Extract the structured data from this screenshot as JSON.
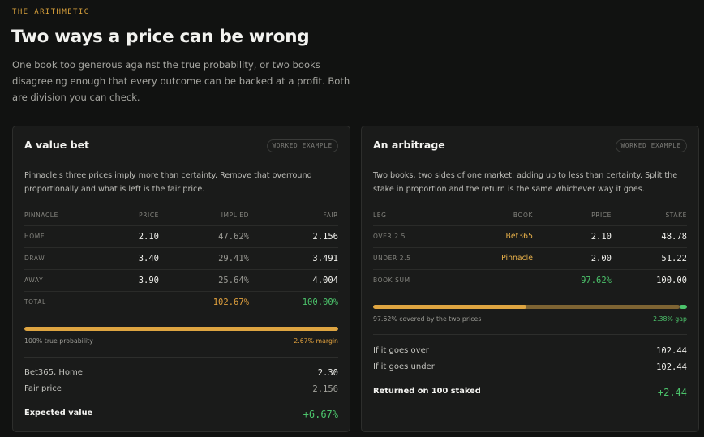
{
  "header": {
    "eyebrow": "THE ARITHMETIC",
    "title": "Two ways a price can be wrong",
    "lede": "One book too generous against the true probability, or two books disagreeing enough that every outcome can be backed at a profit. Both are division you can check."
  },
  "value_bet": {
    "title": "A value bet",
    "badge": "WORKED EXAMPLE",
    "description": "Pinnacle's three prices imply more than certainty. Remove that overround proportionally and what is left is the fair price.",
    "columns": [
      "PINNACLE",
      "PRICE",
      "IMPLIED",
      "FAIR"
    ],
    "rows": [
      {
        "label": "HOME",
        "price": "2.10",
        "implied": "47.62%",
        "fair": "2.156"
      },
      {
        "label": "DRAW",
        "price": "3.40",
        "implied": "29.41%",
        "fair": "3.491"
      },
      {
        "label": "AWAY",
        "price": "3.90",
        "implied": "25.64%",
        "fair": "4.004"
      }
    ],
    "total": {
      "label": "TOTAL",
      "implied": "102.67%",
      "fair": "100.00%"
    },
    "bar": {
      "fill_fraction": 1.0,
      "left_caption": "100% true probability",
      "right_caption": "2.67% margin"
    },
    "summary": [
      {
        "label": "Bet365, Home",
        "value": "2.30"
      },
      {
        "label": "Fair price",
        "value": "2.156"
      }
    ],
    "result": {
      "label": "Expected value",
      "value": "+6.67%"
    }
  },
  "arbitrage": {
    "title": "An arbitrage",
    "badge": "WORKED EXAMPLE",
    "description": "Two books, two sides of one market, adding up to less than certainty. Split the stake in proportion and the return is the same whichever way it goes.",
    "columns": [
      "LEG",
      "BOOK",
      "PRICE",
      "STAKE"
    ],
    "rows": [
      {
        "label": "OVER 2.5",
        "book": "Bet365",
        "price": "2.10",
        "stake": "48.78"
      },
      {
        "label": "UNDER 2.5",
        "book": "Pinnacle",
        "price": "2.00",
        "stake": "51.22"
      }
    ],
    "book_sum": {
      "label": "BOOK SUM",
      "price": "97.62%",
      "stake": "100.00"
    },
    "bar": {
      "first_leg_fraction": 0.4878,
      "covered_fraction": 0.9762,
      "left_caption": "97.62% covered by the two prices",
      "right_caption": "2.38% gap"
    },
    "summary": [
      {
        "label": "If it goes over",
        "value": "102.44"
      },
      {
        "label": "If it goes under",
        "value": "102.44"
      }
    ],
    "result": {
      "label": "Returned on 100 staked",
      "value": "+2.44"
    }
  },
  "colors": {
    "accent_amber": "#e0a03d",
    "accent_green": "#4cc36b",
    "background": "#111211",
    "card": "#1a1b1a"
  }
}
